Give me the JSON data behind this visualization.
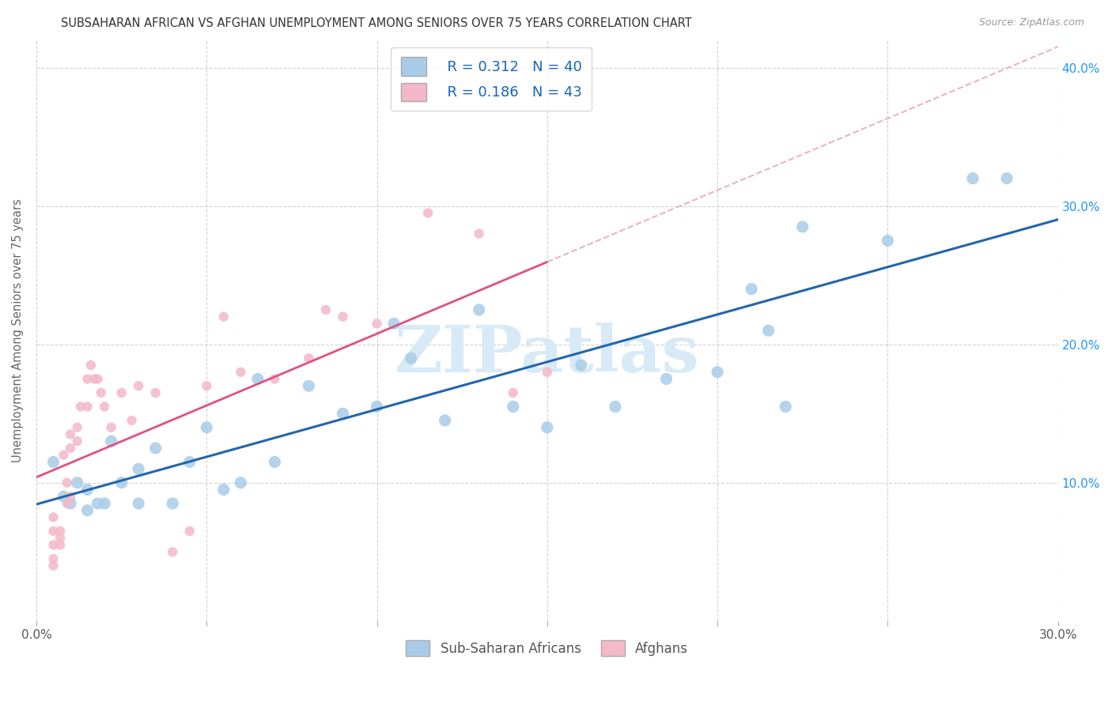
{
  "title": "SUBSAHARAN AFRICAN VS AFGHAN UNEMPLOYMENT AMONG SENIORS OVER 75 YEARS CORRELATION CHART",
  "source": "Source: ZipAtlas.com",
  "ylabel": "Unemployment Among Seniors over 75 years",
  "xlabel_blue": "Sub-Saharan Africans",
  "xlabel_pink": "Afghans",
  "xlim": [
    0.0,
    0.3
  ],
  "ylim": [
    0.0,
    0.42
  ],
  "xticks": [
    0.0,
    0.05,
    0.1,
    0.15,
    0.2,
    0.25,
    0.3
  ],
  "yticks": [
    0.0,
    0.1,
    0.2,
    0.3,
    0.4
  ],
  "R_blue": 0.312,
  "N_blue": 40,
  "R_pink": 0.186,
  "N_pink": 43,
  "blue_color": "#a8cce8",
  "pink_color": "#f4b8c8",
  "line_blue": "#2166ac",
  "line_pink": "#e05080",
  "line_pink_dash": "#e8a0b0",
  "watermark_text": "ZIPatlas",
  "watermark_color": "#d8eaf5",
  "blue_scatter_x": [
    0.005,
    0.008,
    0.01,
    0.012,
    0.015,
    0.015,
    0.018,
    0.02,
    0.022,
    0.025,
    0.03,
    0.03,
    0.035,
    0.04,
    0.045,
    0.05,
    0.055,
    0.06,
    0.065,
    0.07,
    0.08,
    0.09,
    0.1,
    0.105,
    0.11,
    0.12,
    0.13,
    0.14,
    0.15,
    0.16,
    0.17,
    0.185,
    0.2,
    0.21,
    0.215,
    0.22,
    0.225,
    0.25,
    0.275,
    0.285
  ],
  "blue_scatter_y": [
    0.115,
    0.09,
    0.085,
    0.1,
    0.095,
    0.08,
    0.085,
    0.085,
    0.13,
    0.1,
    0.085,
    0.11,
    0.125,
    0.085,
    0.115,
    0.14,
    0.095,
    0.1,
    0.175,
    0.115,
    0.17,
    0.15,
    0.155,
    0.215,
    0.19,
    0.145,
    0.225,
    0.155,
    0.14,
    0.185,
    0.155,
    0.175,
    0.18,
    0.24,
    0.21,
    0.155,
    0.285,
    0.275,
    0.32,
    0.32
  ],
  "pink_scatter_x": [
    0.005,
    0.005,
    0.005,
    0.005,
    0.005,
    0.007,
    0.007,
    0.007,
    0.008,
    0.009,
    0.009,
    0.01,
    0.01,
    0.01,
    0.012,
    0.012,
    0.013,
    0.015,
    0.015,
    0.016,
    0.017,
    0.018,
    0.019,
    0.02,
    0.022,
    0.025,
    0.028,
    0.03,
    0.035,
    0.04,
    0.045,
    0.05,
    0.055,
    0.06,
    0.07,
    0.08,
    0.085,
    0.09,
    0.1,
    0.115,
    0.13,
    0.14,
    0.15
  ],
  "pink_scatter_y": [
    0.065,
    0.075,
    0.055,
    0.045,
    0.04,
    0.065,
    0.06,
    0.055,
    0.12,
    0.085,
    0.1,
    0.135,
    0.125,
    0.09,
    0.14,
    0.13,
    0.155,
    0.175,
    0.155,
    0.185,
    0.175,
    0.175,
    0.165,
    0.155,
    0.14,
    0.165,
    0.145,
    0.17,
    0.165,
    0.05,
    0.065,
    0.17,
    0.22,
    0.18,
    0.175,
    0.19,
    0.225,
    0.22,
    0.215,
    0.295,
    0.28,
    0.165,
    0.18
  ],
  "background_color": "#ffffff",
  "grid_color": "#cccccc",
  "blue_marker_size": 120,
  "pink_marker_size": 80
}
